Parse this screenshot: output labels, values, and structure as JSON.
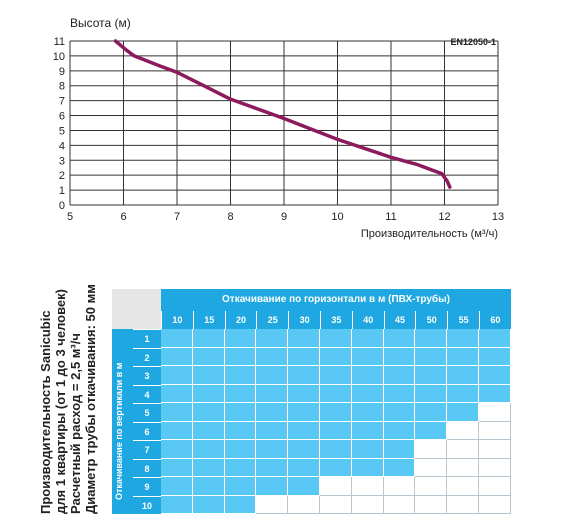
{
  "chart_data": {
    "type": "line",
    "ylabel": "Высота (м)",
    "xlabel": "Производительность (м³/ч)",
    "code_label": "EN12050-1",
    "xlim": [
      5,
      13
    ],
    "ylim": [
      0,
      11
    ],
    "x_ticks": [
      "5",
      "6",
      "7",
      "8",
      "9",
      "10",
      "11",
      "12",
      "13"
    ],
    "y_ticks": [
      "0",
      "1",
      "2",
      "3",
      "4",
      "5",
      "6",
      "7",
      "8",
      "9",
      "10",
      "11"
    ],
    "grid": true,
    "series": [
      {
        "color": "#8b1a5e",
        "x": [
          5.85,
          6.05,
          6.2,
          6.7,
          7.0,
          7.5,
          8.0,
          9.0,
          10.0,
          11.0,
          11.5,
          11.95,
          12.05,
          12.1
        ],
        "y": [
          11.0,
          10.4,
          10.0,
          9.3,
          8.9,
          8.0,
          7.1,
          5.8,
          4.4,
          3.2,
          2.7,
          2.1,
          1.6,
          1.2
        ]
      }
    ]
  },
  "table": {
    "header": "Откачивание по горизонтали в м (ПВХ-трубы)",
    "columns": [
      "10",
      "15",
      "20",
      "25",
      "30",
      "35",
      "40",
      "45",
      "50",
      "55",
      "60"
    ],
    "rows": [
      "1",
      "2",
      "3",
      "4",
      "5",
      "6",
      "7",
      "8",
      "9",
      "10"
    ],
    "row_axis_label": "Откачивание по вертикали в м",
    "filled_columns_per_row": [
      11,
      11,
      11,
      11,
      10,
      9,
      8,
      8,
      5,
      3
    ],
    "fill_color": "#5ac8f5",
    "header_color": "#1ea7e0"
  },
  "side_text": {
    "line1": "Производительность Sanicubic",
    "line2": "для 1 квартиры (от 1 до 3 человек)",
    "line3": "Расчетный расход = 2,5 м³/ч",
    "line4": "Диаметр трубы откачивания: 50 мм"
  }
}
